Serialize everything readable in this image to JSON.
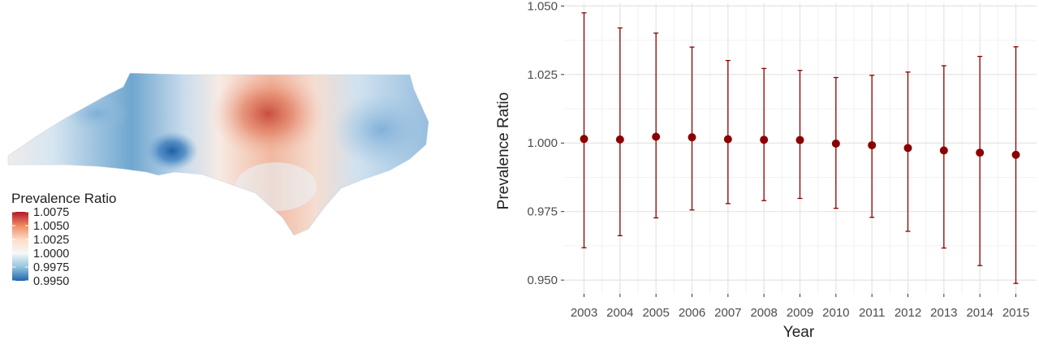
{
  "map_legend": {
    "title": "Prevalence Ratio",
    "labels": [
      "1.0075",
      "1.0050",
      "1.0025",
      "1.0000",
      "0.9975",
      "0.9950"
    ],
    "colors": [
      "#b2182b",
      "#ef8a62",
      "#fddbc7",
      "#f7f7f7",
      "#92c5de",
      "#2166ac"
    ]
  },
  "chart_data": [
    {
      "type": "choropleth-map",
      "legend_title": "Prevalence Ratio",
      "scale_range": [
        0.995,
        1.0075
      ],
      "scale_ticks": [
        1.0075,
        1.005,
        1.0025,
        1.0,
        0.9975,
        0.995
      ],
      "colors": {
        "low": "#2166ac",
        "mid": "#f7f7f7",
        "high": "#b2182b"
      }
    },
    {
      "type": "scatter",
      "subtype": "point-with-errorbars",
      "xlabel": "Year",
      "ylabel": "Prevalence Ratio",
      "x": [
        2003,
        2004,
        2005,
        2006,
        2007,
        2008,
        2009,
        2010,
        2011,
        2012,
        2013,
        2014,
        2015
      ],
      "y": [
        1.0015,
        1.0013,
        1.0023,
        1.0021,
        1.0014,
        1.0012,
        1.0011,
        0.9998,
        0.9992,
        0.9982,
        0.9973,
        0.9965,
        0.9957
      ],
      "lower": [
        0.9618,
        0.9662,
        0.9727,
        0.9756,
        0.9779,
        0.979,
        0.9798,
        0.9762,
        0.9729,
        0.9678,
        0.9617,
        0.9553,
        0.9488
      ],
      "upper": [
        1.0475,
        1.042,
        1.0401,
        1.035,
        1.0301,
        1.0272,
        1.0265,
        1.0239,
        1.0247,
        1.0259,
        1.0282,
        1.0316,
        1.0351
      ],
      "ylim": [
        0.945,
        1.051
      ],
      "yticks": [
        0.95,
        0.975,
        1.0,
        1.025,
        1.05
      ],
      "ytick_labels": [
        "0.950",
        "0.975",
        "1.000",
        "1.025",
        "1.050"
      ],
      "xtick_labels": [
        "2003",
        "2004",
        "2005",
        "2006",
        "2007",
        "2008",
        "2009",
        "2010",
        "2011",
        "2012",
        "2013",
        "2014",
        "2015"
      ],
      "point_color": "#8b0000",
      "grid": true
    }
  ]
}
